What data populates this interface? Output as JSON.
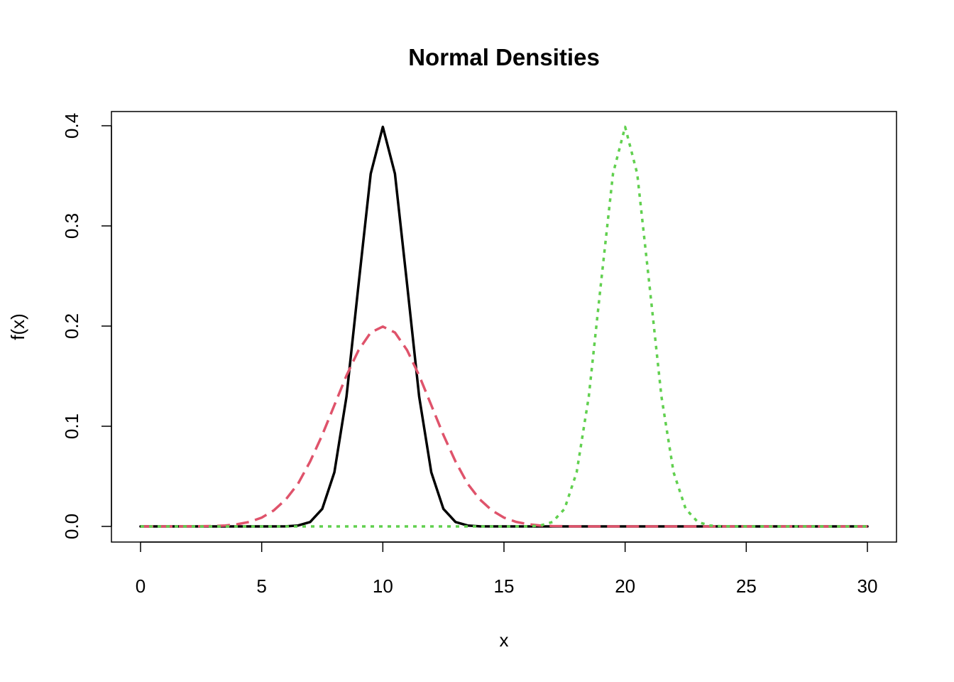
{
  "chart_data": {
    "type": "line",
    "title": "Normal Densities",
    "xlabel": "x",
    "ylabel": "f(x)",
    "xlim": [
      0,
      30
    ],
    "ylim": [
      0,
      0.4
    ],
    "xticks": [
      0,
      5,
      10,
      15,
      20,
      25,
      30
    ],
    "xtick_labels": [
      "0",
      "5",
      "10",
      "15",
      "20",
      "25",
      "30"
    ],
    "yticks": [
      0,
      0.1,
      0.2,
      0.3,
      0.4
    ],
    "ytick_labels": [
      "0.0",
      "0.1",
      "0.2",
      "0.3",
      "0.4"
    ],
    "grid": false,
    "series": [
      {
        "color": "#000000",
        "line_style": "solid",
        "x": [
          0,
          1,
          2,
          3,
          4,
          5,
          6,
          6.5,
          7,
          7.5,
          8,
          8.5,
          9,
          9.5,
          10,
          10.5,
          11,
          11.5,
          12,
          12.5,
          13,
          13.5,
          14,
          15,
          16,
          17,
          18,
          19,
          20,
          21,
          22,
          23,
          24,
          25,
          26,
          27,
          28,
          29,
          30
        ],
        "y": [
          0,
          0,
          0,
          0,
          0,
          0,
          0.0001,
          0.0009,
          0.0044,
          0.0175,
          0.054,
          0.1295,
          0.242,
          0.3521,
          0.3989,
          0.3521,
          0.242,
          0.1295,
          0.054,
          0.0175,
          0.0044,
          0.0009,
          0.0001,
          0,
          0,
          0,
          0,
          0,
          0,
          0,
          0,
          0,
          0,
          0,
          0,
          0,
          0,
          0,
          0
        ]
      },
      {
        "color": "#DF536B",
        "line_style": "dashed",
        "x": [
          0,
          1,
          2,
          3,
          3.5,
          4,
          4.5,
          5,
          5.5,
          6,
          6.5,
          7,
          7.5,
          8,
          8.5,
          9,
          9.5,
          10,
          10.5,
          11,
          11.5,
          12,
          12.5,
          13,
          13.5,
          14,
          14.5,
          15,
          15.5,
          16,
          16.5,
          17,
          18,
          19,
          20,
          21,
          22,
          23,
          24,
          25,
          26,
          27,
          28,
          29,
          30
        ],
        "y": [
          0,
          0,
          0.0001,
          0.0004,
          0.0009,
          0.0022,
          0.0045,
          0.0088,
          0.016,
          0.027,
          0.0426,
          0.0648,
          0.0913,
          0.121,
          0.1506,
          0.176,
          0.1936,
          0.1995,
          0.1936,
          0.176,
          0.1506,
          0.121,
          0.0913,
          0.0648,
          0.0426,
          0.027,
          0.016,
          0.0088,
          0.0045,
          0.0022,
          0.0009,
          0.0004,
          0,
          0,
          0,
          0,
          0,
          0,
          0,
          0,
          0,
          0,
          0,
          0,
          0
        ]
      },
      {
        "color": "#61D04F",
        "line_style": "dotted",
        "x": [
          0,
          2,
          4,
          6,
          8,
          10,
          12,
          14,
          15,
          16,
          16.5,
          17,
          17.5,
          18,
          18.5,
          19,
          19.5,
          20,
          20.5,
          21,
          21.5,
          22,
          22.5,
          23,
          23.5,
          24,
          25,
          26,
          28,
          30
        ],
        "y": [
          0,
          0,
          0,
          0,
          0,
          0,
          0,
          0,
          0,
          0.0001,
          0.0009,
          0.0044,
          0.0175,
          0.054,
          0.1295,
          0.242,
          0.3521,
          0.3989,
          0.3521,
          0.242,
          0.1295,
          0.054,
          0.0175,
          0.0044,
          0.0009,
          0.0001,
          0,
          0,
          0,
          0
        ]
      }
    ]
  }
}
